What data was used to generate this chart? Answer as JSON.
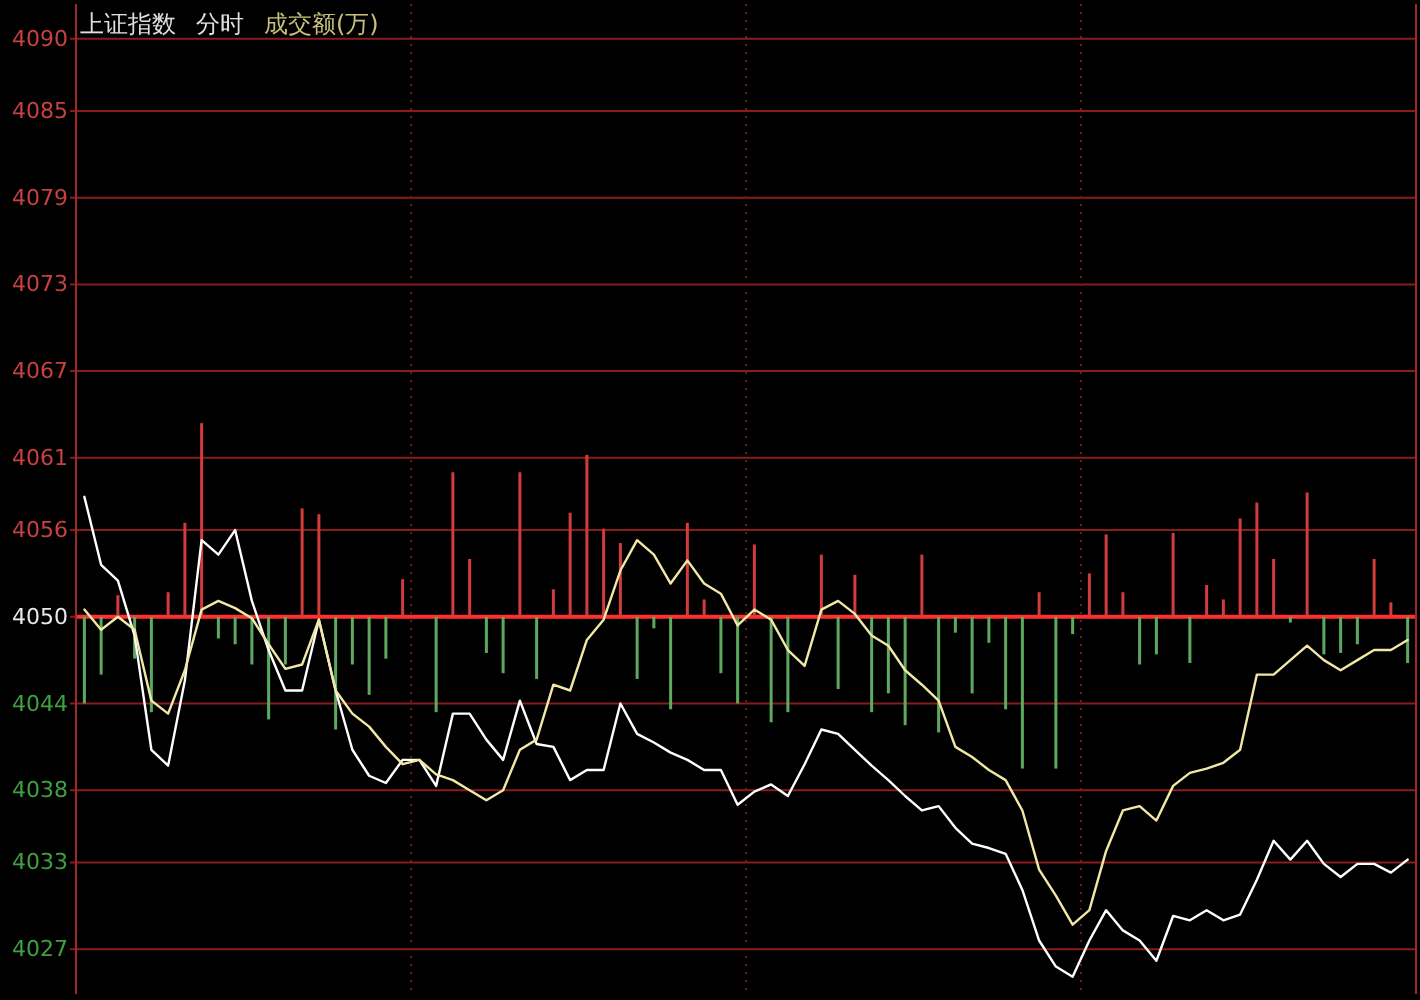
{
  "chart_data": {
    "type": "line",
    "title": "上证指数",
    "subtitle": "分时",
    "annotations": [
      "成交额(万)"
    ],
    "categories": [
      null,
      null,
      null,
      null,
      null,
      null,
      null,
      null,
      null,
      null,
      null,
      null,
      null,
      null,
      null,
      null,
      null,
      null,
      null,
      null,
      null,
      null,
      null,
      null,
      null,
      null,
      null,
      null,
      null,
      null,
      null,
      null,
      null,
      null,
      null,
      null,
      null,
      null,
      null,
      null,
      null,
      null,
      null,
      null,
      null,
      null,
      null,
      null,
      null,
      null,
      null,
      null,
      null,
      null,
      null,
      null,
      null,
      null,
      null,
      null,
      null,
      null,
      null,
      null,
      null,
      null,
      null,
      null,
      null,
      null,
      null,
      null,
      null,
      null,
      null,
      null,
      null,
      null,
      null,
      null
    ],
    "series": [
      {
        "type": "bar",
        "base": [
          4050,
          4050,
          4050,
          4050,
          4050,
          4050,
          4050,
          4050,
          4050,
          4050,
          4050,
          4050,
          4050,
          4050,
          4050,
          4050,
          4050,
          4050,
          4050,
          4050,
          null,
          4050,
          4050,
          4050,
          4050,
          4050,
          4050,
          4050,
          4050,
          4050,
          4050,
          4050,
          4050,
          4050,
          4050,
          4050,
          4050,
          4050,
          4050,
          4050,
          4050,
          4050,
          4050,
          null,
          4050,
          4050,
          4050,
          4050,
          4050,
          4050,
          4050,
          4050,
          4050,
          4050,
          4050,
          4050,
          4050,
          4050,
          4050,
          4050,
          4050,
          4050,
          4050,
          4050,
          4050,
          4050,
          4050,
          4050,
          4050,
          4050,
          4050,
          4050,
          4050,
          4050,
          4050,
          4050,
          4050,
          4050,
          4050,
          4050
        ],
        "values": [
          -6.0,
          -4.0,
          1.5,
          -2.9,
          -6.6,
          1.7,
          6.5,
          13.4,
          -1.5,
          -1.9,
          -3.3,
          -7.1,
          -3.3,
          7.5,
          7.1,
          -7.8,
          -3.3,
          -5.4,
          -2.9,
          2.6,
          null,
          -6.6,
          10.0,
          4.0,
          -2.5,
          -3.9,
          10.0,
          -4.3,
          1.9,
          7.2,
          11.2,
          6.1,
          5.1,
          -4.3,
          -0.8,
          -6.4,
          6.5,
          1.2,
          -3.9,
          -6.0,
          5.0,
          -7.3,
          -6.6,
          null,
          4.3,
          -5.0,
          2.9,
          -6.6,
          -5.3,
          -7.5,
          4.3,
          -8.0,
          -1.1,
          -5.3,
          -1.8,
          -6.4,
          -10.5,
          1.7,
          -10.5,
          -1.2,
          3.0,
          5.7,
          1.7,
          -3.3,
          -2.6,
          5.8,
          -3.2,
          2.2,
          1.2,
          6.8,
          7.9,
          4.0,
          -0.4,
          8.6,
          -2.6,
          -2.5,
          -1.9,
          4.0,
          1.0,
          -3.2
        ],
        "colors": [
          "#5fa85f",
          "#5fa85f",
          "#d23c3c",
          "#5fa85f",
          "#5fa85f",
          "#d23c3c",
          "#d23c3c",
          "#d23c3c",
          "#5fa85f",
          "#5fa85f",
          "#5fa85f",
          "#5fa85f",
          "#5fa85f",
          "#d23c3c",
          "#d23c3c",
          "#5fa85f",
          "#5fa85f",
          "#5fa85f",
          "#5fa85f",
          "#d23c3c",
          null,
          "#5fa85f",
          "#d23c3c",
          "#d23c3c",
          "#5fa85f",
          "#5fa85f",
          "#d23c3c",
          "#5fa85f",
          "#d23c3c",
          "#d23c3c",
          "#d23c3c",
          "#d23c3c",
          "#d23c3c",
          "#5fa85f",
          "#5fa85f",
          "#5fa85f",
          "#d23c3c",
          "#d23c3c",
          "#5fa85f",
          "#5fa85f",
          "#d23c3c",
          "#5fa85f",
          "#5fa85f",
          null,
          "#d23c3c",
          "#5fa85f",
          "#d23c3c",
          "#5fa85f",
          "#5fa85f",
          "#5fa85f",
          "#d23c3c",
          "#5fa85f",
          "#5fa85f",
          "#5fa85f",
          "#5fa85f",
          "#5fa85f",
          "#5fa85f",
          "#d23c3c",
          "#5fa85f",
          "#5fa85f",
          "#d23c3c",
          "#d23c3c",
          "#d23c3c",
          "#5fa85f",
          "#5fa85f",
          "#d23c3c",
          "#5fa85f",
          "#d23c3c",
          "#d23c3c",
          "#d23c3c",
          "#d23c3c",
          "#d23c3c",
          "#5fa85f",
          "#d23c3c",
          "#5fa85f",
          "#5fa85f",
          "#5fa85f",
          "#d23c3c",
          "#d23c3c",
          "#5fa85f"
        ]
      },
      {
        "color": "#ffffff",
        "values": [
          4058.3,
          4053.6,
          4052.5,
          4048.7,
          4040.8,
          4039.7,
          4045.6,
          4055.3,
          4054.3,
          4056.0,
          4051.1,
          4047.7,
          4044.9,
          4044.9,
          4049.8,
          4044.9,
          4040.8,
          4039.0,
          4038.5,
          4040.1,
          4040.1,
          4038.3,
          4043.3,
          4043.3,
          4041.5,
          4040.1,
          4044.2,
          4041.2,
          4041.0,
          4038.7,
          4039.4,
          4039.4,
          4044.0,
          4041.9,
          4041.3,
          4040.6,
          4040.1,
          4039.4,
          4039.4,
          4037.0,
          4037.9,
          4038.4,
          4037.6,
          4039.8,
          4042.2,
          4041.9,
          4040.8,
          4039.7,
          4038.7,
          4037.6,
          4036.6,
          4036.9,
          4035.4,
          4034.3,
          4034.0,
          4033.6,
          4031.1,
          4027.6,
          4025.8,
          4025.1,
          4027.6,
          4029.7,
          4028.3,
          4027.6,
          4026.2,
          4029.3,
          4029.0,
          4029.7,
          4029.0,
          4029.4,
          4031.8,
          4034.5,
          4033.2,
          4034.5,
          4032.9,
          4032.0,
          4032.9,
          4032.9,
          4032.3,
          4033.2
        ]
      },
      {
        "color": "#f2e8a6",
        "values": [
          4050.5,
          4049.1,
          4050.0,
          4049.1,
          4044.2,
          4043.3,
          4046.3,
          4050.5,
          4051.1,
          4050.6,
          4049.9,
          4048.1,
          4046.4,
          4046.7,
          4049.8,
          4044.9,
          4043.3,
          4042.4,
          4041.0,
          4039.8,
          4040.1,
          4039.1,
          4038.7,
          4038.0,
          4037.3,
          4038.0,
          4040.8,
          4041.5,
          4045.3,
          4044.9,
          4048.4,
          4049.8,
          4053.2,
          4055.3,
          4054.3,
          4052.3,
          4053.9,
          4052.3,
          4051.6,
          4049.4,
          4050.5,
          4049.8,
          4047.7,
          4046.6,
          4050.5,
          4051.1,
          4050.2,
          4048.7,
          4048.0,
          4046.3,
          4045.3,
          4044.2,
          4041.0,
          4040.3,
          4039.4,
          4038.7,
          4036.6,
          4032.5,
          4030.7,
          4028.7,
          4029.7,
          4033.8,
          4036.6,
          4036.9,
          4035.9,
          4038.3,
          4039.2,
          4039.5,
          4039.9,
          4040.8,
          4046.0,
          4046.0,
          4047.0,
          4048.0,
          4047.0,
          4046.3,
          4047.0,
          4047.7,
          4047.7,
          4048.4
        ]
      }
    ],
    "ylim": [
      4023.9,
      4092.4
    ],
    "yticks": [
      4027,
      4033,
      4038,
      4044,
      4050,
      4056,
      4061,
      4067,
      4073,
      4079,
      4085,
      4090
    ],
    "grid": true,
    "tick_labels": "y",
    "ref_lines": [
      {
        "axis": "y",
        "value": 4050,
        "color": "#ff3030"
      }
    ]
  }
}
